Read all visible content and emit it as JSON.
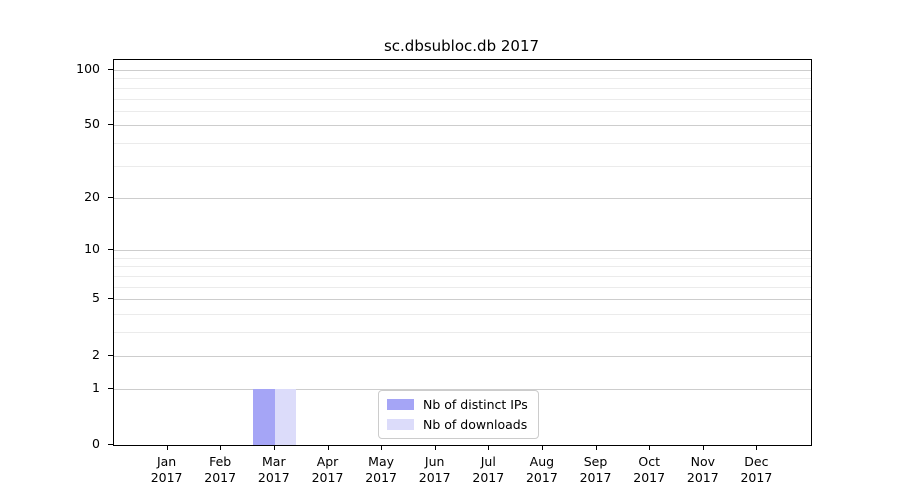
{
  "title": "sc.dbsubloc.db 2017",
  "chart_data": {
    "type": "bar",
    "title": "sc.dbsubloc.db 2017",
    "categories": [
      {
        "month": "Jan",
        "year": "2017"
      },
      {
        "month": "Feb",
        "year": "2017"
      },
      {
        "month": "Mar",
        "year": "2017"
      },
      {
        "month": "Apr",
        "year": "2017"
      },
      {
        "month": "May",
        "year": "2017"
      },
      {
        "month": "Jun",
        "year": "2017"
      },
      {
        "month": "Jul",
        "year": "2017"
      },
      {
        "month": "Aug",
        "year": "2017"
      },
      {
        "month": "Sep",
        "year": "2017"
      },
      {
        "month": "Oct",
        "year": "2017"
      },
      {
        "month": "Nov",
        "year": "2017"
      },
      {
        "month": "Dec",
        "year": "2017"
      }
    ],
    "series": [
      {
        "name": "Nb of distinct IPs",
        "color": "#a5a5f6",
        "values": [
          0,
          0,
          1,
          0,
          0,
          0,
          0,
          0,
          0,
          0,
          0,
          0
        ]
      },
      {
        "name": "Nb of downloads",
        "color": "#dcdcfa",
        "values": [
          0,
          0,
          1,
          0,
          0,
          0,
          0,
          0,
          0,
          0,
          0,
          0
        ]
      }
    ],
    "xlabel": "",
    "ylabel": "",
    "yscale": "log1p",
    "ylim": [
      0,
      113
    ],
    "yticks": [
      0,
      1,
      2,
      5,
      10,
      20,
      50,
      100
    ],
    "yticks_minor": [
      3,
      4,
      6,
      7,
      8,
      9,
      30,
      40,
      60,
      70,
      80,
      90
    ],
    "grid": true,
    "legend_position": "lower center",
    "colors": {
      "grid_major": "#cdcdcd",
      "grid_minor": "#ebebeb",
      "spine": "#000000",
      "text": "#000000",
      "legend_border": "#cccccc"
    }
  }
}
